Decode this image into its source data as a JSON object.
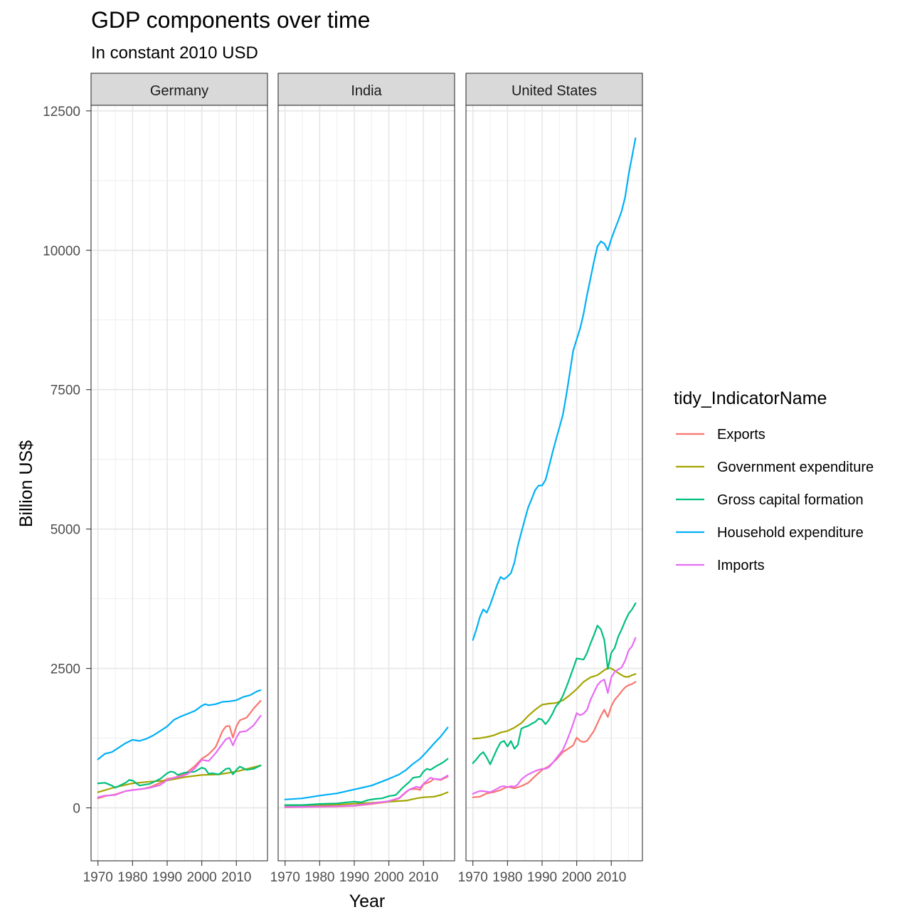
{
  "chart_data": {
    "type": "line",
    "title": "GDP components over time",
    "subtitle": "In constant 2010 USD",
    "xlabel": "Year",
    "ylabel": "Billion US$",
    "xlim": [
      1968,
      2019
    ],
    "ylim": [
      -950,
      12600
    ],
    "x_ticks": [
      1970,
      1980,
      1990,
      2000,
      2010
    ],
    "y_ticks": [
      0,
      2500,
      5000,
      7500,
      10000,
      12500
    ],
    "grid": true,
    "legend": {
      "title": "tidy_IndicatorName",
      "position": "right",
      "entries": [
        "Exports",
        "Government expenditure",
        "Gross capital formation",
        "Household expenditure",
        "Imports"
      ]
    },
    "colors": {
      "Exports": "#F8766D",
      "Government expenditure": "#A3A500",
      "Gross capital formation": "#00BF7D",
      "Household expenditure": "#00B0F6",
      "Imports": "#E76BF3"
    },
    "facets": [
      {
        "name": "Germany",
        "series": [
          {
            "name": "Exports",
            "x": [
              1970,
              1972,
              1975,
              1978,
              1980,
              1983,
              1985,
              1988,
              1990,
              1992,
              1995,
              1998,
              2000,
              2002,
              2004,
              2006,
              2007,
              2008,
              2009,
              2010,
              2011,
              2013,
              2015,
              2017
            ],
            "y": [
              170,
              210,
              240,
              300,
              320,
              340,
              370,
              450,
              520,
              540,
              600,
              750,
              880,
              960,
              1090,
              1380,
              1460,
              1470,
              1260,
              1460,
              1570,
              1620,
              1780,
              1920
            ]
          },
          {
            "name": "Government expenditure",
            "x": [
              1970,
              1975,
              1980,
              1985,
              1990,
              1995,
              2000,
              2005,
              2010,
              2017
            ],
            "y": [
              280,
              370,
              440,
              470,
              490,
              550,
              590,
              600,
              650,
              760
            ]
          },
          {
            "name": "Gross capital formation",
            "x": [
              1970,
              1972,
              1974,
              1975,
              1978,
              1979,
              1980,
              1982,
              1985,
              1988,
              1990,
              1991,
              1992,
              1993,
              1995,
              1998,
              2000,
              2001,
              2002,
              2003,
              2005,
              2007,
              2008,
              2009,
              2010,
              2011,
              2013,
              2015,
              2017
            ],
            "y": [
              440,
              450,
              400,
              360,
              450,
              500,
              490,
              400,
              430,
              520,
              620,
              650,
              640,
              590,
              630,
              650,
              720,
              700,
              610,
              620,
              600,
              700,
              710,
              600,
              680,
              740,
              680,
              700,
              760
            ]
          },
          {
            "name": "Household expenditure",
            "x": [
              1970,
              1972,
              1974,
              1976,
              1978,
              1980,
              1982,
              1984,
              1986,
              1988,
              1990,
              1992,
              1994,
              1996,
              1998,
              2000,
              2001,
              2002,
              2004,
              2006,
              2008,
              2010,
              2012,
              2014,
              2016,
              2017
            ],
            "y": [
              870,
              970,
              1000,
              1080,
              1160,
              1220,
              1200,
              1240,
              1300,
              1380,
              1460,
              1580,
              1640,
              1690,
              1740,
              1830,
              1860,
              1840,
              1860,
              1900,
              1910,
              1930,
              1990,
              2020,
              2090,
              2110
            ]
          },
          {
            "name": "Imports",
            "x": [
              1970,
              1972,
              1975,
              1978,
              1980,
              1983,
              1985,
              1988,
              1990,
              1992,
              1994,
              1996,
              1998,
              2000,
              2002,
              2004,
              2006,
              2007,
              2008,
              2009,
              2010,
              2011,
              2013,
              2015,
              2017
            ],
            "y": [
              190,
              220,
              230,
              300,
              320,
              340,
              360,
              410,
              500,
              540,
              560,
              610,
              710,
              860,
              840,
              980,
              1150,
              1230,
              1260,
              1120,
              1260,
              1360,
              1380,
              1480,
              1650
            ]
          }
        ]
      },
      {
        "name": "India",
        "series": [
          {
            "name": "Exports",
            "x": [
              1970,
              1975,
              1980,
              1985,
              1990,
              1995,
              2000,
              2003,
              2005,
              2006,
              2008,
              2009,
              2010,
              2012,
              2013,
              2015,
              2017
            ],
            "y": [
              10,
              15,
              20,
              25,
              35,
              70,
              110,
              170,
              280,
              330,
              340,
              320,
              420,
              470,
              520,
              500,
              560
            ]
          },
          {
            "name": "Government expenditure",
            "x": [
              1970,
              1975,
              1980,
              1985,
              1990,
              1995,
              2000,
              2005,
              2008,
              2010,
              2013,
              2015,
              2017
            ],
            "y": [
              35,
              40,
              50,
              55,
              75,
              90,
              110,
              130,
              170,
              190,
              200,
              230,
              280
            ]
          },
          {
            "name": "Gross capital formation",
            "x": [
              1970,
              1975,
              1980,
              1985,
              1988,
              1990,
              1992,
              1994,
              1996,
              1998,
              2000,
              2002,
              2004,
              2006,
              2007,
              2008,
              2009,
              2010,
              2011,
              2012,
              2013,
              2014,
              2015,
              2016,
              2017
            ],
            "y": [
              50,
              50,
              70,
              80,
              100,
              110,
              100,
              140,
              160,
              170,
              210,
              230,
              360,
              470,
              540,
              550,
              560,
              650,
              700,
              680,
              720,
              760,
              790,
              830,
              880
            ]
          },
          {
            "name": "Household expenditure",
            "x": [
              1970,
              1975,
              1980,
              1985,
              1990,
              1995,
              2000,
              2003,
              2005,
              2007,
              2009,
              2011,
              2013,
              2015,
              2017
            ],
            "y": [
              150,
              170,
              220,
              260,
              330,
              400,
              520,
              600,
              680,
              790,
              880,
              1010,
              1150,
              1280,
              1440
            ]
          },
          {
            "name": "Imports",
            "x": [
              1970,
              1975,
              1980,
              1985,
              1990,
              1995,
              2000,
              2003,
              2005,
              2006,
              2008,
              2009,
              2010,
              2012,
              2013,
              2015,
              2017
            ],
            "y": [
              15,
              18,
              25,
              30,
              40,
              80,
              120,
              180,
              290,
              330,
              380,
              360,
              430,
              540,
              520,
              510,
              580
            ]
          }
        ]
      },
      {
        "name": "United States",
        "series": [
          {
            "name": "Exports",
            "x": [
              1970,
              1972,
              1974,
              1976,
              1978,
              1980,
              1982,
              1984,
              1986,
              1988,
              1990,
              1992,
              1994,
              1996,
              1998,
              1999,
              2000,
              2001,
              2002,
              2003,
              2005,
              2007,
              2008,
              2009,
              2010,
              2011,
              2012,
              2013,
              2014,
              2015,
              2016,
              2017
            ],
            "y": [
              190,
              200,
              260,
              280,
              320,
              380,
              350,
              390,
              450,
              570,
              680,
              750,
              860,
              1000,
              1080,
              1120,
              1260,
              1200,
              1180,
              1200,
              1380,
              1650,
              1760,
              1630,
              1820,
              1940,
              2010,
              2090,
              2160,
              2200,
              2220,
              2260
            ]
          },
          {
            "name": "Government expenditure",
            "x": [
              1970,
              1972,
              1974,
              1976,
              1978,
              1980,
              1982,
              1984,
              1986,
              1988,
              1990,
              1992,
              1994,
              1996,
              1998,
              2000,
              2002,
              2004,
              2006,
              2008,
              2009,
              2010,
              2011,
              2012,
              2013,
              2014,
              2015,
              2016,
              2017
            ],
            "y": [
              1240,
              1250,
              1270,
              1300,
              1350,
              1380,
              1440,
              1520,
              1650,
              1760,
              1850,
              1870,
              1880,
              1930,
              2020,
              2130,
              2260,
              2340,
              2380,
              2470,
              2510,
              2500,
              2460,
              2420,
              2380,
              2350,
              2350,
              2380,
              2400
            ]
          },
          {
            "name": "Gross capital formation",
            "x": [
              1970,
              1971,
              1972,
              1973,
              1974,
              1975,
              1976,
              1977,
              1978,
              1979,
              1980,
              1981,
              1982,
              1983,
              1984,
              1985,
              1986,
              1987,
              1988,
              1989,
              1990,
              1991,
              1992,
              1993,
              1994,
              1995,
              1996,
              1997,
              1998,
              1999,
              2000,
              2001,
              2002,
              2003,
              2004,
              2005,
              2006,
              2007,
              2008,
              2009,
              2010,
              2011,
              2012,
              2013,
              2014,
              2015,
              2016,
              2017
            ],
            "y": [
              800,
              870,
              950,
              1000,
              900,
              780,
              920,
              1060,
              1170,
              1200,
              1100,
              1200,
              1060,
              1130,
              1420,
              1450,
              1470,
              1510,
              1540,
              1600,
              1580,
              1500,
              1580,
              1690,
              1820,
              1890,
              2010,
              2160,
              2330,
              2500,
              2680,
              2670,
              2660,
              2780,
              2950,
              3100,
              3270,
              3200,
              3010,
              2490,
              2780,
              2870,
              3070,
              3200,
              3350,
              3480,
              3560,
              3670
            ]
          },
          {
            "name": "Household expenditure",
            "x": [
              1970,
              1971,
              1972,
              1973,
              1974,
              1975,
              1976,
              1977,
              1978,
              1979,
              1980,
              1981,
              1982,
              1983,
              1984,
              1985,
              1986,
              1987,
              1988,
              1989,
              1990,
              1991,
              1992,
              1993,
              1994,
              1995,
              1996,
              1997,
              1998,
              1999,
              2000,
              2001,
              2002,
              2003,
              2004,
              2005,
              2006,
              2007,
              2008,
              2009,
              2010,
              2011,
              2012,
              2013,
              2014,
              2015,
              2016,
              2017
            ],
            "y": [
              3010,
              3200,
              3420,
              3560,
              3500,
              3640,
              3820,
              4000,
              4140,
              4100,
              4150,
              4210,
              4400,
              4700,
              4940,
              5170,
              5390,
              5540,
              5700,
              5780,
              5780,
              5880,
              6120,
              6370,
              6600,
              6820,
              7050,
              7400,
              7800,
              8200,
              8400,
              8600,
              8860,
              9200,
              9500,
              9800,
              10070,
              10160,
              10120,
              10000,
              10200,
              10370,
              10530,
              10700,
              10950,
              11350,
              11680,
              12010
            ]
          },
          {
            "name": "Imports",
            "x": [
              1970,
              1971,
              1972,
              1973,
              1974,
              1975,
              1976,
              1977,
              1978,
              1979,
              1980,
              1981,
              1982,
              1983,
              1984,
              1985,
              1986,
              1987,
              1988,
              1989,
              1990,
              1991,
              1992,
              1993,
              1994,
              1995,
              1996,
              1997,
              1998,
              1999,
              2000,
              2001,
              2002,
              2003,
              2004,
              2005,
              2006,
              2007,
              2008,
              2009,
              2010,
              2011,
              2012,
              2013,
              2014,
              2015,
              2016,
              2017
            ],
            "y": [
              250,
              280,
              300,
              300,
              290,
              280,
              310,
              340,
              380,
              390,
              370,
              390,
              380,
              420,
              510,
              560,
              600,
              630,
              660,
              680,
              700,
              700,
              730,
              800,
              880,
              960,
              1040,
              1180,
              1340,
              1510,
              1700,
              1660,
              1690,
              1760,
              1940,
              2070,
              2200,
              2270,
              2300,
              2060,
              2340,
              2440,
              2480,
              2520,
              2640,
              2820,
              2900,
              3050
            ]
          }
        ]
      }
    ]
  }
}
